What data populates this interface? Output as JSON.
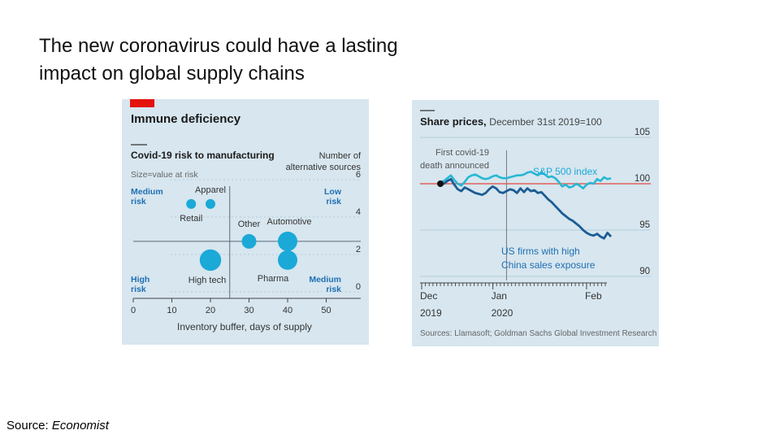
{
  "slide": {
    "title_line1": "The new coronavirus could have a lasting",
    "title_line2": "impact on global supply chains",
    "source_label": "Source:",
    "source_name": "Economist"
  },
  "colors": {
    "panel_bg": "#d7e6ef",
    "economist_red": "#e3120b",
    "bubble": "#1ba9d8",
    "label_blue": "#1f6fb2",
    "sp500_line": "#27b8d4",
    "us_firms_line": "#1c5c94",
    "ref_line": "#e0605c",
    "text_dark": "#1a1a1a",
    "text_grey": "#555555"
  },
  "chart_data": [
    {
      "type": "scatter",
      "title": "Immune deficiency",
      "subtitle": "Covid-19 risk to manufacturing",
      "size_note": "Size=value at risk",
      "xlabel": "Inventory buffer, days of supply",
      "ylabel": "Number of alternative sources",
      "ylabel_line1": "Number of",
      "ylabel_line2": "alternative sources",
      "xlim": [
        0,
        60
      ],
      "ylim": [
        0,
        6
      ],
      "xticks": [
        0,
        10,
        20,
        30,
        40,
        50
      ],
      "yticks": [
        0,
        2,
        4,
        6
      ],
      "quadrant_split": {
        "x": 25,
        "y": 2.7
      },
      "quadrants": {
        "top_left": [
          "Medium",
          "risk"
        ],
        "top_right": [
          "Low",
          "risk"
        ],
        "bottom_left": [
          "High",
          "risk"
        ],
        "bottom_right": [
          "Medium",
          "risk"
        ]
      },
      "points": [
        {
          "name": "Apparel",
          "x": 20,
          "y": 4.7,
          "size": 1
        },
        {
          "name": "Retail",
          "x": 15,
          "y": 4.7,
          "size": 1
        },
        {
          "name": "Other",
          "x": 30,
          "y": 2.7,
          "size": 1.5
        },
        {
          "name": "Automotive",
          "x": 40,
          "y": 2.7,
          "size": 2
        },
        {
          "name": "High tech",
          "x": 20,
          "y": 1.7,
          "size": 2.2
        },
        {
          "name": "Pharma",
          "x": 40,
          "y": 1.7,
          "size": 2
        }
      ]
    },
    {
      "type": "line",
      "title": "Share prices,",
      "subtitle": "December 31st 2019=100",
      "ylim": [
        90,
        105
      ],
      "yticks": [
        90,
        95,
        100,
        105
      ],
      "baseline": 100,
      "xlim": [
        0,
        49
      ],
      "x_labels": [
        {
          "x": 0,
          "line1": "Dec",
          "line2": "2019"
        },
        {
          "x": 19,
          "line1": "Jan",
          "line2": "2020"
        },
        {
          "x": 44,
          "line1": "Feb",
          "line2": ""
        }
      ],
      "annotation": {
        "x": 19,
        "line1": "First covid-19",
        "line2": "death announced"
      },
      "source": "Sources: Llamasoft; Goldman Sachs Global Investment Research",
      "series": [
        {
          "name": "S&P 500 index",
          "values": [
            100.2,
            100.3,
            100.6,
            100.9,
            100.4,
            100.0,
            99.8,
            100.2,
            100.7,
            100.9,
            101.0,
            100.8,
            100.6,
            100.5,
            100.6,
            100.8,
            100.9,
            100.7,
            100.6,
            100.6,
            100.7,
            100.8,
            100.9,
            100.9,
            101.0,
            101.2,
            101.3,
            101.1,
            100.9,
            101.2,
            101.0,
            100.7,
            100.8,
            100.6,
            100.2,
            99.7,
            99.9,
            99.6,
            99.7,
            100.0,
            99.8,
            99.5,
            99.9,
            100.1,
            100.0,
            100.5,
            100.3,
            100.7,
            100.5,
            100.6
          ]
        },
        {
          "name": "US firms with high China sales exposure",
          "name_line1": "US firms with high",
          "name_line2": "China sales exposure",
          "values": [
            99.9,
            100.0,
            100.3,
            100.5,
            99.9,
            99.4,
            99.2,
            99.6,
            99.4,
            99.2,
            99.0,
            98.9,
            98.8,
            99.0,
            99.4,
            99.7,
            99.5,
            99.1,
            99.0,
            99.2,
            99.4,
            99.3,
            99.0,
            99.5,
            99.1,
            99.5,
            99.2,
            99.3,
            99.0,
            99.1,
            98.7,
            98.3,
            98.0,
            97.6,
            97.2,
            96.8,
            96.5,
            96.2,
            96.0,
            95.7,
            95.4,
            95.0,
            94.7,
            94.5,
            94.4,
            94.6,
            94.3,
            94.1,
            94.7,
            94.3
          ]
        }
      ]
    }
  ]
}
